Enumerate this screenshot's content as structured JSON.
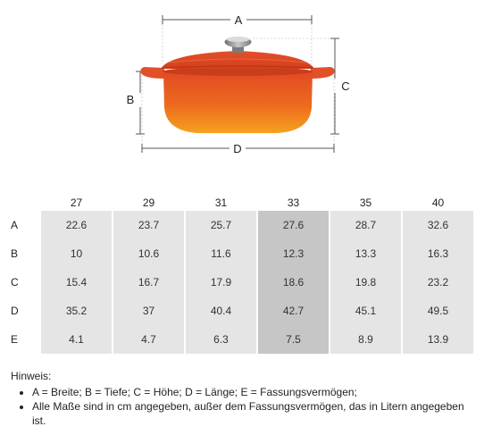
{
  "figure": {
    "dimension_labels": {
      "a": "A",
      "b": "B",
      "c": "C",
      "d": "D"
    },
    "colors": {
      "pot_top": "#e8532a",
      "pot_bottom": "#f29a1e",
      "knob": "#9a9a9a",
      "lines": "#555555"
    }
  },
  "table": {
    "columns": [
      "27",
      "29",
      "31",
      "33",
      "35",
      "40"
    ],
    "highlight_column": "33",
    "rows": [
      {
        "label": "A",
        "values": [
          "22.6",
          "23.7",
          "25.7",
          "27.6",
          "28.7",
          "32.6"
        ]
      },
      {
        "label": "B",
        "values": [
          "10",
          "10.6",
          "11.6",
          "12.3",
          "13.3",
          "16.3"
        ]
      },
      {
        "label": "C",
        "values": [
          "15.4",
          "16.7",
          "17.9",
          "18.6",
          "19.8",
          "23.2"
        ]
      },
      {
        "label": "D",
        "values": [
          "35.2",
          "37",
          "40.4",
          "42.7",
          "45.1",
          "49.5"
        ]
      },
      {
        "label": "E",
        "values": [
          "4.1",
          "4.7",
          "6.3",
          "7.5",
          "8.9",
          "13.9"
        ]
      }
    ],
    "colors": {
      "cell": "#e5e5e5",
      "highlight": "#c6c6c6"
    }
  },
  "notes": {
    "heading": "Hinweis:",
    "items": [
      "A = Breite; B = Tiefe; C = Höhe; D = Länge; E = Fassungsvermögen;",
      "Alle Maße sind in cm angegeben, außer dem Fassungsvermögen, das in Litern angegeben ist."
    ]
  }
}
